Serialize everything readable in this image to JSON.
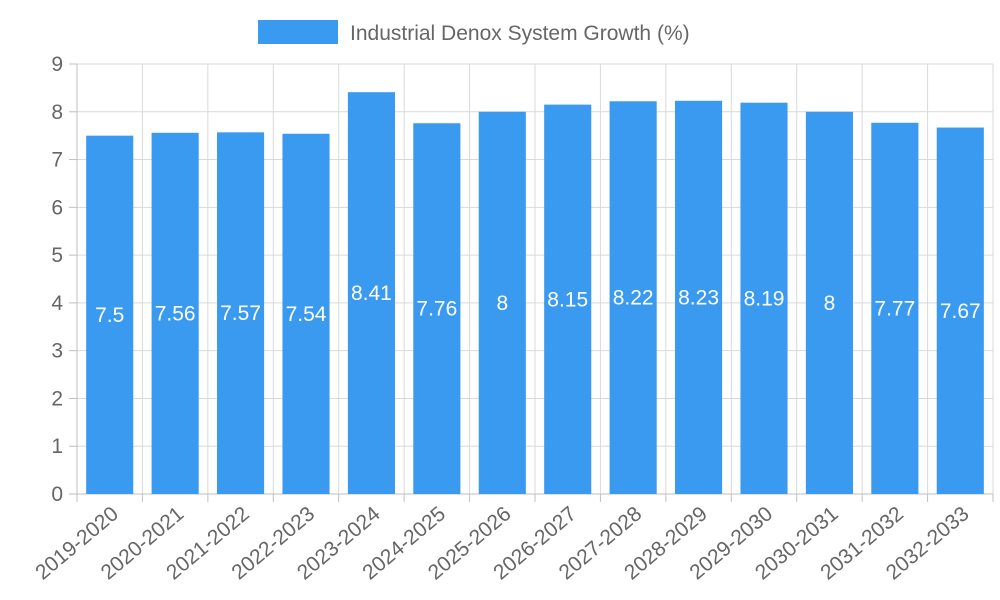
{
  "chart_data": {
    "type": "bar",
    "title": "",
    "xlabel": "",
    "ylabel": "",
    "categories": [
      "2019-2020",
      "2020-2021",
      "2021-2022",
      "2022-2023",
      "2023-2024",
      "2024-2025",
      "2025-2026",
      "2026-2027",
      "2027-2028",
      "2028-2029",
      "2029-2030",
      "2030-2031",
      "2031-2032",
      "2032-2033"
    ],
    "series": [
      {
        "name": "Industrial Denox System Growth (%)",
        "values": [
          7.5,
          7.56,
          7.57,
          7.54,
          8.41,
          7.76,
          8,
          8.15,
          8.22,
          8.23,
          8.19,
          8,
          7.77,
          7.67
        ],
        "color": "#3a9af0"
      }
    ],
    "ylim": [
      0,
      9
    ],
    "yticks": [
      0,
      1,
      2,
      3,
      4,
      5,
      6,
      7,
      8,
      9
    ],
    "grid": true,
    "legend_position": "top-center",
    "data_labels": true
  }
}
